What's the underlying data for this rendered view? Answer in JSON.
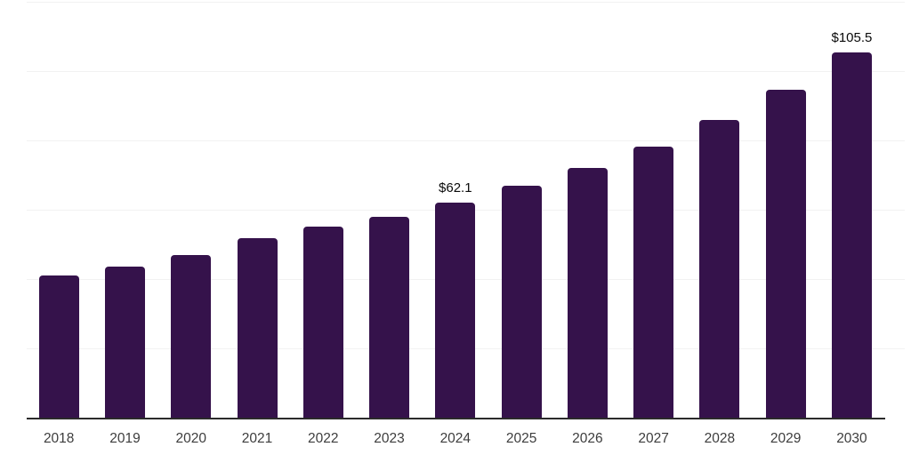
{
  "chart_data": {
    "type": "bar",
    "title": "",
    "xlabel": "",
    "ylabel": "",
    "categories": [
      "2018",
      "2019",
      "2020",
      "2021",
      "2022",
      "2023",
      "2024",
      "2025",
      "2026",
      "2027",
      "2028",
      "2029",
      "2030"
    ],
    "values": [
      41.1,
      43.5,
      46.9,
      51.8,
      55.2,
      58.0,
      62.1,
      66.8,
      72.0,
      78.2,
      86.0,
      94.7,
      105.5
    ],
    "data_labels": {
      "2024": "$62.1",
      "2030": "$105.5"
    },
    "ylim": [
      0,
      120
    ],
    "gridline_step": 20,
    "grid": true,
    "legend_position": "none",
    "colors": {
      "bar": "#35124B",
      "gridline": "#f2f2f2",
      "axis_line": "#2b2b2b",
      "tick_label": "#3d3d3d",
      "data_label": "#0a0a0a",
      "background": "#ffffff"
    }
  }
}
